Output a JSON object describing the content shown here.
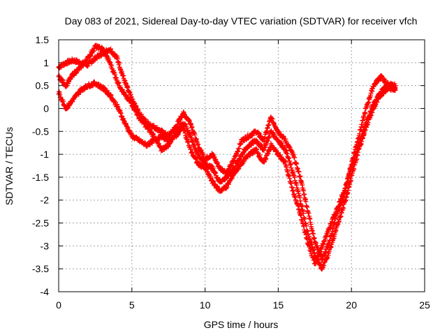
{
  "chart_data": {
    "type": "scatter",
    "title": "Day 083 of 2021, Sidereal Day-to-day VTEC variation (SDTVAR) for receiver vfch",
    "xlabel": "GPS time / hours",
    "ylabel": "SDTVAR / TECUs",
    "xlim": [
      0,
      25
    ],
    "ylim": [
      -4,
      1.5
    ],
    "x_ticks": [
      "0",
      "5",
      "10",
      "15",
      "20",
      "25"
    ],
    "y_ticks": [
      "1.5",
      "1",
      "0.5",
      "0",
      "-0.5",
      "-1",
      "-1.5",
      "-2",
      "-2.5",
      "-3",
      "-3.5",
      "-4"
    ],
    "grid": true,
    "marker": "+",
    "color": "#ff0000",
    "series": [
      {
        "points": [
          [
            0.0,
            0.9
          ],
          [
            0.5,
            1.0
          ],
          [
            1.0,
            1.05
          ],
          [
            1.5,
            1.0
          ],
          [
            2.0,
            0.95
          ],
          [
            2.5,
            1.1
          ],
          [
            3.0,
            1.2
          ],
          [
            3.5,
            1.3
          ],
          [
            4.0,
            1.1
          ],
          [
            4.5,
            0.6
          ],
          [
            5.0,
            0.2
          ],
          [
            5.5,
            -0.1
          ],
          [
            6.0,
            -0.3
          ],
          [
            6.5,
            -0.4
          ],
          [
            7.0,
            -0.5
          ],
          [
            7.5,
            -0.6
          ],
          [
            8.0,
            -0.4
          ],
          [
            8.5,
            -0.1
          ],
          [
            9.0,
            -0.3
          ],
          [
            9.5,
            -0.8
          ],
          [
            10.0,
            -1.1
          ],
          [
            10.5,
            -1.0
          ],
          [
            11.0,
            -1.3
          ],
          [
            11.5,
            -1.4
          ],
          [
            12.0,
            -1.1
          ],
          [
            12.5,
            -0.7
          ],
          [
            13.0,
            -0.6
          ],
          [
            13.5,
            -0.5
          ],
          [
            14.0,
            -0.7
          ],
          [
            14.5,
            -0.2
          ],
          [
            15.0,
            -0.5
          ],
          [
            15.5,
            -0.7
          ],
          [
            16.0,
            -1.0
          ],
          [
            16.5,
            -1.5
          ],
          [
            17.0,
            -2.2
          ],
          [
            17.5,
            -2.9
          ],
          [
            18.0,
            -3.3
          ],
          [
            18.5,
            -2.9
          ],
          [
            19.0,
            -2.3
          ],
          [
            19.5,
            -1.9
          ],
          [
            20.0,
            -1.2
          ],
          [
            20.5,
            -0.6
          ],
          [
            21.0,
            0.0
          ],
          [
            21.5,
            0.5
          ],
          [
            22.0,
            0.7
          ],
          [
            22.5,
            0.5
          ],
          [
            23.0,
            0.5
          ]
        ]
      },
      {
        "points": [
          [
            0.0,
            0.7
          ],
          [
            0.5,
            0.5
          ],
          [
            1.0,
            0.75
          ],
          [
            1.5,
            0.9
          ],
          [
            2.0,
            1.1
          ],
          [
            2.5,
            1.35
          ],
          [
            3.0,
            1.3
          ],
          [
            3.5,
            1.0
          ],
          [
            4.0,
            0.6
          ],
          [
            4.5,
            0.3
          ],
          [
            5.0,
            0.1
          ],
          [
            5.5,
            -0.2
          ],
          [
            6.0,
            -0.4
          ],
          [
            6.5,
            -0.6
          ],
          [
            7.0,
            -0.9
          ],
          [
            7.5,
            -0.8
          ],
          [
            8.0,
            -0.5
          ],
          [
            8.5,
            -0.3
          ],
          [
            9.0,
            -0.6
          ],
          [
            9.5,
            -1.0
          ],
          [
            10.0,
            -1.2
          ],
          [
            10.5,
            -1.3
          ],
          [
            11.0,
            -1.6
          ],
          [
            11.5,
            -1.5
          ],
          [
            12.0,
            -1.3
          ],
          [
            12.5,
            -1.0
          ],
          [
            13.0,
            -0.8
          ],
          [
            13.5,
            -0.7
          ],
          [
            14.0,
            -0.9
          ],
          [
            14.5,
            -0.5
          ],
          [
            15.0,
            -0.7
          ],
          [
            15.5,
            -0.9
          ],
          [
            16.0,
            -1.4
          ],
          [
            16.5,
            -2.0
          ],
          [
            17.0,
            -2.7
          ],
          [
            17.5,
            -3.2
          ],
          [
            18.0,
            -3.5
          ],
          [
            18.5,
            -3.1
          ],
          [
            19.0,
            -2.6
          ],
          [
            19.5,
            -2.1
          ],
          [
            20.0,
            -1.5
          ],
          [
            20.5,
            -0.9
          ],
          [
            21.0,
            -0.4
          ],
          [
            21.5,
            0.0
          ],
          [
            22.0,
            0.3
          ],
          [
            22.5,
            0.45
          ],
          [
            23.0,
            0.4
          ]
        ]
      },
      {
        "points": [
          [
            0.0,
            0.35
          ],
          [
            0.5,
            0.0
          ],
          [
            1.0,
            0.2
          ],
          [
            1.5,
            0.4
          ],
          [
            2.0,
            0.5
          ],
          [
            2.5,
            0.55
          ],
          [
            3.0,
            0.45
          ],
          [
            3.5,
            0.3
          ],
          [
            4.0,
            0.05
          ],
          [
            4.5,
            -0.3
          ],
          [
            5.0,
            -0.6
          ],
          [
            5.5,
            -0.7
          ],
          [
            6.0,
            -0.8
          ],
          [
            6.5,
            -0.7
          ],
          [
            7.0,
            -0.6
          ],
          [
            7.5,
            -0.7
          ],
          [
            8.0,
            -0.6
          ],
          [
            8.5,
            -0.4
          ],
          [
            9.0,
            -0.9
          ],
          [
            9.5,
            -1.2
          ],
          [
            10.0,
            -1.3
          ],
          [
            10.5,
            -1.6
          ],
          [
            11.0,
            -1.8
          ],
          [
            11.5,
            -1.7
          ],
          [
            12.0,
            -1.4
          ],
          [
            12.5,
            -1.2
          ],
          [
            13.0,
            -1.0
          ],
          [
            13.5,
            -0.9
          ],
          [
            14.0,
            -1.2
          ],
          [
            14.5,
            -0.8
          ],
          [
            15.0,
            -1.0
          ],
          [
            15.5,
            -1.2
          ],
          [
            16.0,
            -1.8
          ],
          [
            16.5,
            -2.3
          ],
          [
            17.0,
            -2.9
          ],
          [
            17.5,
            -3.4
          ],
          [
            18.0,
            -3.0
          ],
          [
            18.5,
            -2.6
          ],
          [
            19.0,
            -2.2
          ],
          [
            19.5,
            -1.8
          ],
          [
            20.0,
            -1.3
          ],
          [
            20.5,
            -0.8
          ],
          [
            21.0,
            -0.3
          ],
          [
            21.5,
            0.1
          ],
          [
            22.0,
            0.35
          ],
          [
            22.5,
            0.55
          ],
          [
            23.0,
            0.45
          ]
        ]
      }
    ]
  }
}
